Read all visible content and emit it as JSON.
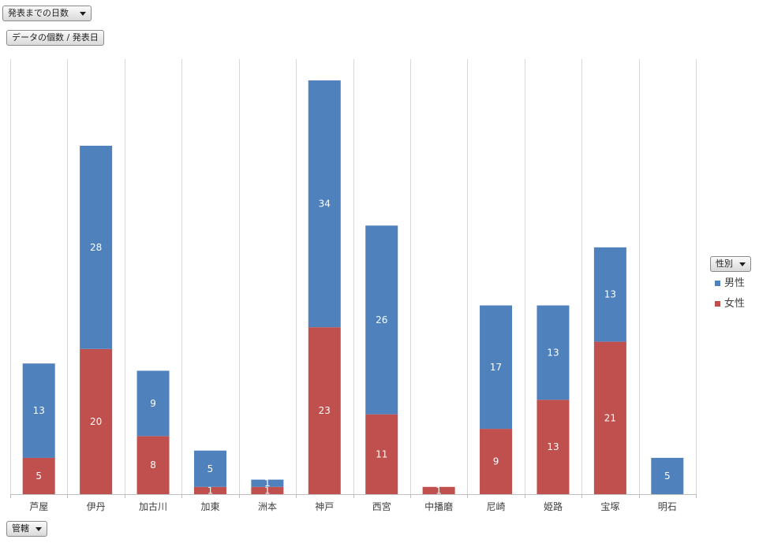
{
  "filters": {
    "report_filter_label": "発表までの日数",
    "values_label": "データの個数 / 発表日",
    "axis_field_label": "管轄",
    "legend_field_label": "性別"
  },
  "legend": {
    "items": [
      "男性",
      "女性"
    ],
    "placement": "right"
  },
  "colors": {
    "male": "#4f81bd",
    "female": "#c0504d",
    "grid": "#d9d9d9",
    "axis": "#bfbfbf"
  },
  "icons": {
    "dropdown": "chevron-down-icon"
  },
  "chart_data": {
    "type": "bar",
    "stacked": true,
    "categories": [
      "芦屋",
      "伊丹",
      "加古川",
      "加東",
      "洲本",
      "神戸",
      "西宮",
      "中播磨",
      "尼崎",
      "姫路",
      "宝塚",
      "明石"
    ],
    "series": [
      {
        "name": "女性",
        "values": [
          5,
          20,
          8,
          1,
          1,
          23,
          11,
          1,
          9,
          13,
          21,
          0
        ]
      },
      {
        "name": "男性",
        "values": [
          13,
          28,
          9,
          5,
          1,
          34,
          26,
          0,
          17,
          13,
          13,
          5
        ]
      }
    ],
    "title": "",
    "xlabel": "",
    "ylabel": "",
    "ylim": [
      0,
      60
    ],
    "grid": "vertical-category-separators",
    "legend": "right"
  }
}
